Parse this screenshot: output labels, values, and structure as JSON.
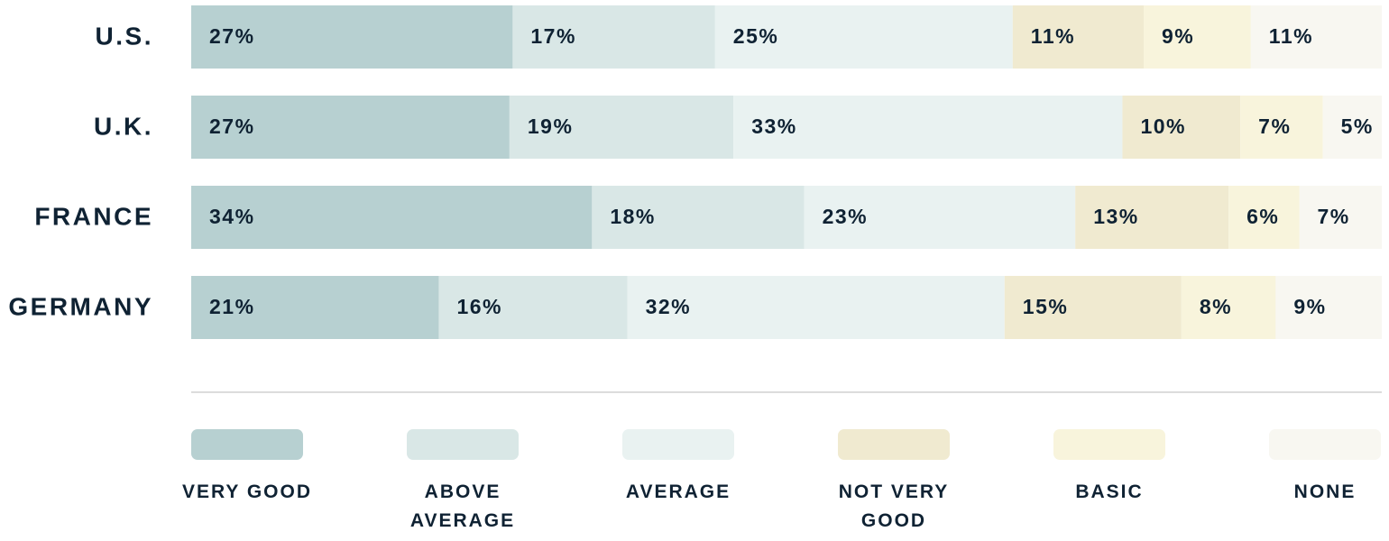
{
  "chart_data": {
    "type": "stacked-bar",
    "categories": [
      "U.S.",
      "U.K.",
      "FRANCE",
      "GERMANY"
    ],
    "series": [
      {
        "name": "VERY GOOD",
        "color": "#b7d0d1",
        "values": [
          27,
          27,
          34,
          21
        ],
        "value_labels": [
          "27%",
          "27%",
          "34%",
          "21%"
        ]
      },
      {
        "name": "ABOVE AVERAGE",
        "color": "#d9e7e6",
        "values": [
          17,
          19,
          18,
          16
        ],
        "value_labels": [
          "17%",
          "19%",
          "18%",
          "16%"
        ]
      },
      {
        "name": "AVERAGE",
        "color": "#e9f2f1",
        "values": [
          25,
          33,
          23,
          32
        ],
        "value_labels": [
          "25%",
          "33%",
          "23%",
          "32%"
        ]
      },
      {
        "name": "NOT VERY GOOD",
        "color": "#f0ead0",
        "values": [
          11,
          10,
          13,
          15
        ],
        "value_labels": [
          "11%",
          "10%",
          "13%",
          "15%"
        ]
      },
      {
        "name": "BASIC",
        "color": "#f8f4dc",
        "values": [
          9,
          7,
          6,
          8
        ],
        "value_labels": [
          "9%",
          "7%",
          "6%",
          "8%"
        ]
      },
      {
        "name": "NONE",
        "color": "#f8f7f1",
        "values": [
          11,
          5,
          7,
          9
        ],
        "value_labels": [
          "11%",
          "5%",
          "7%",
          "9%"
        ]
      }
    ]
  }
}
